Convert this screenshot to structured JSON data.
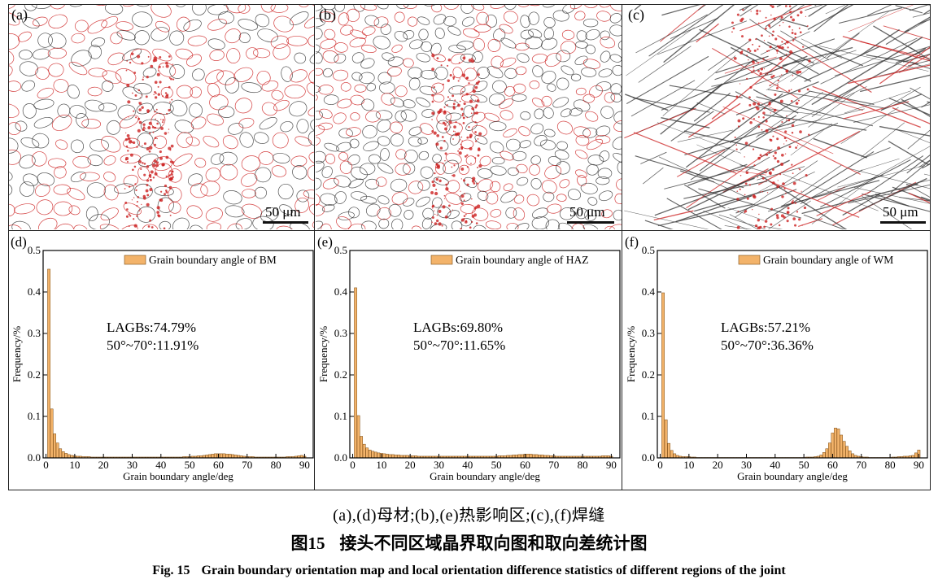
{
  "figure": {
    "subcaption": "(a),(d)母材;(b),(e)热影响区;(c),(f)焊缝",
    "label_cn": "图15",
    "title_cn": "接头不同区域晶界取向图和取向差统计图",
    "label_en": "Fig. 15",
    "title_en": "Grain boundary orientation map and local orientation difference statistics of different regions of the joint"
  },
  "micrographs": [
    {
      "letter": "(a)",
      "scale_bar": "50 μm",
      "style": "equiaxed"
    },
    {
      "letter": "(b)",
      "scale_bar": "50 μm",
      "style": "fine"
    },
    {
      "letter": "(c)",
      "scale_bar": "50 μm",
      "style": "lath"
    }
  ],
  "colors": {
    "bars": "#f3b36a",
    "bar_edge": "#7a4a12",
    "low_angle_boundary": "#cc2020",
    "high_angle_boundary": "#333333"
  },
  "chart_data": [
    {
      "type": "bar",
      "letter": "(d)",
      "legend": "Grain boundary angle of BM",
      "legend_position": "top-right",
      "annotation_line1": "LAGBs:74.79%",
      "annotation_line2": "50°~70°:11.91%",
      "xlabel": "Grain boundary angle/deg",
      "ylabel": "Frequency/%",
      "xlim": [
        -1,
        93
      ],
      "ylim": [
        0,
        0.5
      ],
      "xticks": [
        0,
        10,
        20,
        30,
        40,
        50,
        60,
        70,
        80,
        90
      ],
      "yticks": [
        0.0,
        0.1,
        0.2,
        0.3,
        0.4,
        0.5
      ],
      "ytick_labels": [
        "0.0",
        "0.1",
        "0.2",
        "0.3",
        "0.4",
        "0.5"
      ],
      "x": [
        1,
        2,
        3,
        4,
        5,
        6,
        7,
        8,
        9,
        10,
        11,
        12,
        13,
        14,
        15,
        16,
        17,
        18,
        19,
        20,
        21,
        22,
        23,
        24,
        25,
        26,
        27,
        28,
        29,
        30,
        31,
        32,
        33,
        34,
        35,
        36,
        37,
        38,
        39,
        40,
        41,
        42,
        43,
        44,
        45,
        46,
        47,
        48,
        49,
        50,
        51,
        52,
        53,
        54,
        55,
        56,
        57,
        58,
        59,
        60,
        61,
        62,
        63,
        64,
        65,
        66,
        67,
        68,
        69,
        70,
        71,
        72,
        73,
        74,
        75,
        76,
        77,
        78,
        79,
        80,
        81,
        82,
        83,
        84,
        85,
        86,
        87,
        88,
        89,
        90
      ],
      "values": [
        0.455,
        0.118,
        0.058,
        0.036,
        0.022,
        0.015,
        0.011,
        0.008,
        0.006,
        0.005,
        0.004,
        0.004,
        0.003,
        0.003,
        0.003,
        0.002,
        0.002,
        0.002,
        0.002,
        0.002,
        0.002,
        0.002,
        0.002,
        0.002,
        0.002,
        0.002,
        0.002,
        0.002,
        0.002,
        0.002,
        0.002,
        0.002,
        0.002,
        0.002,
        0.002,
        0.002,
        0.002,
        0.002,
        0.002,
        0.002,
        0.002,
        0.002,
        0.002,
        0.002,
        0.002,
        0.002,
        0.002,
        0.003,
        0.003,
        0.003,
        0.004,
        0.004,
        0.005,
        0.005,
        0.006,
        0.007,
        0.008,
        0.009,
        0.01,
        0.01,
        0.01,
        0.01,
        0.009,
        0.009,
        0.008,
        0.007,
        0.006,
        0.005,
        0.004,
        0.003,
        0.003,
        0.003,
        0.002,
        0.002,
        0.002,
        0.002,
        0.002,
        0.002,
        0.002,
        0.002,
        0.002,
        0.002,
        0.002,
        0.003,
        0.003,
        0.003,
        0.004,
        0.005,
        0.006,
        0.004
      ]
    },
    {
      "type": "bar",
      "letter": "(e)",
      "legend": "Grain boundary angle of HAZ",
      "legend_position": "top-right",
      "annotation_line1": "LAGBs:69.80%",
      "annotation_line2": "50°~70°:11.65%",
      "xlabel": "Grain boundary angle/deg",
      "ylabel": "Frequency/%",
      "xlim": [
        -1,
        93
      ],
      "ylim": [
        0,
        0.5
      ],
      "xticks": [
        0,
        10,
        20,
        30,
        40,
        50,
        60,
        70,
        80,
        90
      ],
      "yticks": [
        0.0,
        0.1,
        0.2,
        0.3,
        0.4,
        0.5
      ],
      "ytick_labels": [
        "0.0",
        "0.1",
        "0.2",
        "0.3",
        "0.4",
        "0.5"
      ],
      "x": [
        1,
        2,
        3,
        4,
        5,
        6,
        7,
        8,
        9,
        10,
        11,
        12,
        13,
        14,
        15,
        16,
        17,
        18,
        19,
        20,
        21,
        22,
        23,
        24,
        25,
        26,
        27,
        28,
        29,
        30,
        31,
        32,
        33,
        34,
        35,
        36,
        37,
        38,
        39,
        40,
        41,
        42,
        43,
        44,
        45,
        46,
        47,
        48,
        49,
        50,
        51,
        52,
        53,
        54,
        55,
        56,
        57,
        58,
        59,
        60,
        61,
        62,
        63,
        64,
        65,
        66,
        67,
        68,
        69,
        70,
        71,
        72,
        73,
        74,
        75,
        76,
        77,
        78,
        79,
        80,
        81,
        82,
        83,
        84,
        85,
        86,
        87,
        88,
        89,
        90
      ],
      "values": [
        0.41,
        0.102,
        0.052,
        0.033,
        0.024,
        0.019,
        0.016,
        0.014,
        0.012,
        0.011,
        0.01,
        0.009,
        0.008,
        0.008,
        0.007,
        0.007,
        0.006,
        0.006,
        0.006,
        0.005,
        0.005,
        0.005,
        0.004,
        0.004,
        0.004,
        0.004,
        0.004,
        0.004,
        0.004,
        0.004,
        0.004,
        0.004,
        0.004,
        0.004,
        0.004,
        0.004,
        0.004,
        0.004,
        0.004,
        0.004,
        0.004,
        0.004,
        0.004,
        0.004,
        0.004,
        0.004,
        0.004,
        0.004,
        0.004,
        0.004,
        0.005,
        0.005,
        0.005,
        0.006,
        0.006,
        0.007,
        0.007,
        0.008,
        0.008,
        0.009,
        0.009,
        0.009,
        0.008,
        0.008,
        0.007,
        0.007,
        0.006,
        0.006,
        0.005,
        0.005,
        0.004,
        0.004,
        0.004,
        0.004,
        0.004,
        0.004,
        0.004,
        0.004,
        0.004,
        0.004,
        0.004,
        0.004,
        0.004,
        0.004,
        0.004,
        0.004,
        0.005,
        0.005,
        0.005,
        0.004
      ]
    },
    {
      "type": "bar",
      "letter": "(f)",
      "legend": "Grain boundary angle of WM",
      "legend_position": "top-right",
      "annotation_line1": "LAGBs:57.21%",
      "annotation_line2": "50°~70°:36.36%",
      "xlabel": "Grain boundary angle/deg",
      "ylabel": "Frequency/%",
      "xlim": [
        -1,
        93
      ],
      "ylim": [
        0,
        0.5
      ],
      "xticks": [
        0,
        10,
        20,
        30,
        40,
        50,
        60,
        70,
        80,
        90
      ],
      "yticks": [
        0.0,
        0.1,
        0.2,
        0.3,
        0.4,
        0.5
      ],
      "ytick_labels": [
        "0.0",
        "0.1",
        "0.2",
        "0.3",
        "0.4",
        "0.5"
      ],
      "x": [
        1,
        2,
        3,
        4,
        5,
        6,
        7,
        8,
        9,
        10,
        11,
        12,
        13,
        14,
        15,
        16,
        17,
        18,
        19,
        20,
        21,
        22,
        23,
        24,
        25,
        26,
        27,
        28,
        29,
        30,
        31,
        32,
        33,
        34,
        35,
        36,
        37,
        38,
        39,
        40,
        41,
        42,
        43,
        44,
        45,
        46,
        47,
        48,
        49,
        50,
        51,
        52,
        53,
        54,
        55,
        56,
        57,
        58,
        59,
        60,
        61,
        62,
        63,
        64,
        65,
        66,
        67,
        68,
        69,
        70,
        71,
        72,
        73,
        74,
        75,
        76,
        77,
        78,
        79,
        80,
        81,
        82,
        83,
        84,
        85,
        86,
        87,
        88,
        89,
        90
      ],
      "values": [
        0.398,
        0.092,
        0.035,
        0.018,
        0.01,
        0.006,
        0.004,
        0.003,
        0.003,
        0.003,
        0.002,
        0.002,
        0.001,
        0.001,
        0.001,
        0.001,
        0.001,
        0.001,
        0.001,
        0.001,
        0.001,
        0.001,
        0.001,
        0.001,
        0.001,
        0.001,
        0.001,
        0.001,
        0.001,
        0.001,
        0.001,
        0.001,
        0.001,
        0.001,
        0.001,
        0.001,
        0.001,
        0.001,
        0.001,
        0.001,
        0.001,
        0.001,
        0.001,
        0.001,
        0.001,
        0.001,
        0.001,
        0.001,
        0.001,
        0.001,
        0.002,
        0.002,
        0.002,
        0.003,
        0.004,
        0.007,
        0.013,
        0.022,
        0.036,
        0.06,
        0.072,
        0.07,
        0.055,
        0.04,
        0.028,
        0.017,
        0.01,
        0.006,
        0.004,
        0.003,
        0.002,
        0.002,
        0.001,
        0.001,
        0.001,
        0.001,
        0.001,
        0.001,
        0.001,
        0.001,
        0.002,
        0.002,
        0.003,
        0.003,
        0.004,
        0.004,
        0.005,
        0.006,
        0.012,
        0.019
      ]
    }
  ]
}
